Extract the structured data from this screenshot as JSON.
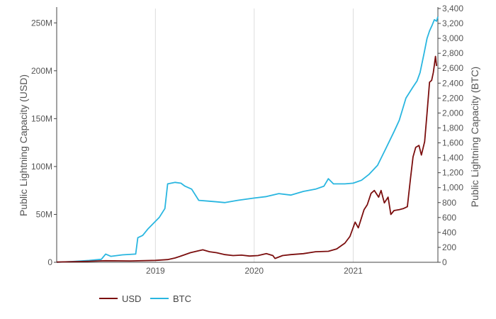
{
  "chart_data": {
    "type": "line",
    "title": "",
    "x_ticks": [
      "2019",
      "2020",
      "2021"
    ],
    "x_range": [
      "2018-01-01",
      "2021-11-10"
    ],
    "y_left": {
      "label": "Public Lightning Capacity (USD)",
      "ticks": [
        "0",
        "50M",
        "100M",
        "150M",
        "200M",
        "250M"
      ],
      "range": [
        0,
        265
      ]
    },
    "y_right": {
      "label": "Public Lightning Capacity (BTC)",
      "ticks": [
        "0",
        "200",
        "400",
        "600",
        "800",
        "1,000",
        "1,200",
        "1,400",
        "1,600",
        "1,800",
        "2,000",
        "2,200",
        "2,400",
        "2,600",
        "2,800",
        "3,000",
        "3,200",
        "3,400"
      ],
      "range": [
        0,
        3400
      ]
    },
    "grid": "vertical",
    "legend": "bottom-left",
    "series": [
      {
        "name": "USD",
        "axis": "left",
        "color": "#7b0e0e",
        "points": [
          [
            "2018-01-01",
            0.2
          ],
          [
            "2018-04-01",
            0.8
          ],
          [
            "2018-07-01",
            1.6
          ],
          [
            "2018-10-01",
            1.4
          ],
          [
            "2019-01-01",
            2.0
          ],
          [
            "2019-02-15",
            2.8
          ],
          [
            "2019-03-15",
            4.5
          ],
          [
            "2019-04-15",
            7.5
          ],
          [
            "2019-05-10",
            10.0
          ],
          [
            "2019-06-01",
            11.5
          ],
          [
            "2019-06-25",
            13.0
          ],
          [
            "2019-07-20",
            11.0
          ],
          [
            "2019-08-15",
            10.0
          ],
          [
            "2019-09-15",
            8.0
          ],
          [
            "2019-10-15",
            7.0
          ],
          [
            "2019-11-15",
            7.5
          ],
          [
            "2019-12-15",
            6.5
          ],
          [
            "2020-01-15",
            7.0
          ],
          [
            "2020-02-15",
            9.0
          ],
          [
            "2020-03-10",
            7.0
          ],
          [
            "2020-03-18",
            4.0
          ],
          [
            "2020-04-15",
            7.0
          ],
          [
            "2020-05-15",
            8.0
          ],
          [
            "2020-07-01",
            9.0
          ],
          [
            "2020-08-15",
            11.0
          ],
          [
            "2020-10-01",
            11.5
          ],
          [
            "2020-11-01",
            14.0
          ],
          [
            "2020-12-01",
            20.0
          ],
          [
            "2020-12-20",
            27.0
          ],
          [
            "2021-01-08",
            42.0
          ],
          [
            "2021-01-20",
            36.0
          ],
          [
            "2021-02-10",
            55.0
          ],
          [
            "2021-02-22",
            60.0
          ],
          [
            "2021-03-08",
            72.0
          ],
          [
            "2021-03-20",
            75.0
          ],
          [
            "2021-04-05",
            68.0
          ],
          [
            "2021-04-14",
            75.0
          ],
          [
            "2021-04-26",
            62.0
          ],
          [
            "2021-05-10",
            68.0
          ],
          [
            "2021-05-20",
            50.0
          ],
          [
            "2021-06-01",
            54.0
          ],
          [
            "2021-06-20",
            55.0
          ],
          [
            "2021-07-05",
            56.0
          ],
          [
            "2021-07-20",
            58.0
          ],
          [
            "2021-08-01",
            88.0
          ],
          [
            "2021-08-10",
            110.0
          ],
          [
            "2021-08-20",
            120.0
          ],
          [
            "2021-09-01",
            122.0
          ],
          [
            "2021-09-10",
            112.0
          ],
          [
            "2021-09-22",
            126.0
          ],
          [
            "2021-10-01",
            156.0
          ],
          [
            "2021-10-10",
            188.0
          ],
          [
            "2021-10-18",
            190.0
          ],
          [
            "2021-10-24",
            198.0
          ],
          [
            "2021-10-28",
            206.0
          ],
          [
            "2021-11-01",
            215.0
          ],
          [
            "2021-11-05",
            205.0
          ]
        ]
      },
      {
        "name": "BTC",
        "axis": "right",
        "color": "#29b6e0",
        "points": [
          [
            "2018-01-01",
            0
          ],
          [
            "2018-03-01",
            10
          ],
          [
            "2018-05-01",
            25
          ],
          [
            "2018-06-15",
            40
          ],
          [
            "2018-07-01",
            110
          ],
          [
            "2018-07-20",
            80
          ],
          [
            "2018-09-01",
            100
          ],
          [
            "2018-10-20",
            110
          ],
          [
            "2018-10-28",
            330
          ],
          [
            "2018-11-15",
            360
          ],
          [
            "2018-12-05",
            450
          ],
          [
            "2019-01-15",
            600
          ],
          [
            "2019-02-05",
            720
          ],
          [
            "2019-02-15",
            1050
          ],
          [
            "2019-03-15",
            1070
          ],
          [
            "2019-04-05",
            1060
          ],
          [
            "2019-04-20",
            1020
          ],
          [
            "2019-05-15",
            980
          ],
          [
            "2019-06-10",
            830
          ],
          [
            "2019-07-15",
            820
          ],
          [
            "2019-08-15",
            810
          ],
          [
            "2019-09-15",
            800
          ],
          [
            "2019-11-01",
            830
          ],
          [
            "2020-01-01",
            860
          ],
          [
            "2020-02-15",
            880
          ],
          [
            "2020-04-01",
            920
          ],
          [
            "2020-05-15",
            900
          ],
          [
            "2020-07-01",
            950
          ],
          [
            "2020-08-15",
            980
          ],
          [
            "2020-09-15",
            1020
          ],
          [
            "2020-10-01",
            1120
          ],
          [
            "2020-10-20",
            1050
          ],
          [
            "2020-12-01",
            1050
          ],
          [
            "2021-01-01",
            1060
          ],
          [
            "2021-02-01",
            1100
          ],
          [
            "2021-03-01",
            1180
          ],
          [
            "2021-04-01",
            1300
          ],
          [
            "2021-05-01",
            1520
          ],
          [
            "2021-06-01",
            1750
          ],
          [
            "2021-06-20",
            1900
          ],
          [
            "2021-07-15",
            2200
          ],
          [
            "2021-08-10",
            2350
          ],
          [
            "2021-08-25",
            2430
          ],
          [
            "2021-09-05",
            2540
          ],
          [
            "2021-09-20",
            2800
          ],
          [
            "2021-10-01",
            3000
          ],
          [
            "2021-10-10",
            3100
          ],
          [
            "2021-10-20",
            3180
          ],
          [
            "2021-10-28",
            3250
          ],
          [
            "2021-11-05",
            3230
          ],
          [
            "2021-11-10",
            3290
          ]
        ]
      }
    ]
  }
}
